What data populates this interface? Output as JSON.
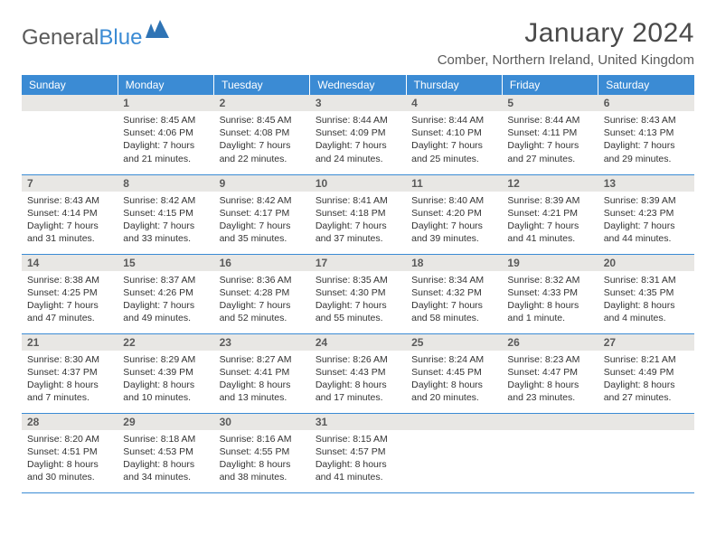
{
  "brand": {
    "part1": "General",
    "part2": "Blue"
  },
  "title": "January 2024",
  "location": "Comber, Northern Ireland, United Kingdom",
  "colors": {
    "header_bg": "#3b8bd4",
    "header_text": "#ffffff",
    "daynum_bg": "#e8e7e4",
    "border": "#3b8bd4",
    "text": "#333333",
    "brand_gray": "#5a5a5a",
    "brand_blue": "#3b8bd4"
  },
  "typography": {
    "title_fontsize": 30,
    "location_fontsize": 15,
    "dayheader_fontsize": 12,
    "body_fontsize": 10.5
  },
  "calendar": {
    "day_headers": [
      "Sunday",
      "Monday",
      "Tuesday",
      "Wednesday",
      "Thursday",
      "Friday",
      "Saturday"
    ],
    "first_weekday_index": 1,
    "days": [
      {
        "n": 1,
        "sunrise": "8:45 AM",
        "sunset": "4:06 PM",
        "daylight": "7 hours and 21 minutes."
      },
      {
        "n": 2,
        "sunrise": "8:45 AM",
        "sunset": "4:08 PM",
        "daylight": "7 hours and 22 minutes."
      },
      {
        "n": 3,
        "sunrise": "8:44 AM",
        "sunset": "4:09 PM",
        "daylight": "7 hours and 24 minutes."
      },
      {
        "n": 4,
        "sunrise": "8:44 AM",
        "sunset": "4:10 PM",
        "daylight": "7 hours and 25 minutes."
      },
      {
        "n": 5,
        "sunrise": "8:44 AM",
        "sunset": "4:11 PM",
        "daylight": "7 hours and 27 minutes."
      },
      {
        "n": 6,
        "sunrise": "8:43 AM",
        "sunset": "4:13 PM",
        "daylight": "7 hours and 29 minutes."
      },
      {
        "n": 7,
        "sunrise": "8:43 AM",
        "sunset": "4:14 PM",
        "daylight": "7 hours and 31 minutes."
      },
      {
        "n": 8,
        "sunrise": "8:42 AM",
        "sunset": "4:15 PM",
        "daylight": "7 hours and 33 minutes."
      },
      {
        "n": 9,
        "sunrise": "8:42 AM",
        "sunset": "4:17 PM",
        "daylight": "7 hours and 35 minutes."
      },
      {
        "n": 10,
        "sunrise": "8:41 AM",
        "sunset": "4:18 PM",
        "daylight": "7 hours and 37 minutes."
      },
      {
        "n": 11,
        "sunrise": "8:40 AM",
        "sunset": "4:20 PM",
        "daylight": "7 hours and 39 minutes."
      },
      {
        "n": 12,
        "sunrise": "8:39 AM",
        "sunset": "4:21 PM",
        "daylight": "7 hours and 41 minutes."
      },
      {
        "n": 13,
        "sunrise": "8:39 AM",
        "sunset": "4:23 PM",
        "daylight": "7 hours and 44 minutes."
      },
      {
        "n": 14,
        "sunrise": "8:38 AM",
        "sunset": "4:25 PM",
        "daylight": "7 hours and 47 minutes."
      },
      {
        "n": 15,
        "sunrise": "8:37 AM",
        "sunset": "4:26 PM",
        "daylight": "7 hours and 49 minutes."
      },
      {
        "n": 16,
        "sunrise": "8:36 AM",
        "sunset": "4:28 PM",
        "daylight": "7 hours and 52 minutes."
      },
      {
        "n": 17,
        "sunrise": "8:35 AM",
        "sunset": "4:30 PM",
        "daylight": "7 hours and 55 minutes."
      },
      {
        "n": 18,
        "sunrise": "8:34 AM",
        "sunset": "4:32 PM",
        "daylight": "7 hours and 58 minutes."
      },
      {
        "n": 19,
        "sunrise": "8:32 AM",
        "sunset": "4:33 PM",
        "daylight": "8 hours and 1 minute."
      },
      {
        "n": 20,
        "sunrise": "8:31 AM",
        "sunset": "4:35 PM",
        "daylight": "8 hours and 4 minutes."
      },
      {
        "n": 21,
        "sunrise": "8:30 AM",
        "sunset": "4:37 PM",
        "daylight": "8 hours and 7 minutes."
      },
      {
        "n": 22,
        "sunrise": "8:29 AM",
        "sunset": "4:39 PM",
        "daylight": "8 hours and 10 minutes."
      },
      {
        "n": 23,
        "sunrise": "8:27 AM",
        "sunset": "4:41 PM",
        "daylight": "8 hours and 13 minutes."
      },
      {
        "n": 24,
        "sunrise": "8:26 AM",
        "sunset": "4:43 PM",
        "daylight": "8 hours and 17 minutes."
      },
      {
        "n": 25,
        "sunrise": "8:24 AM",
        "sunset": "4:45 PM",
        "daylight": "8 hours and 20 minutes."
      },
      {
        "n": 26,
        "sunrise": "8:23 AM",
        "sunset": "4:47 PM",
        "daylight": "8 hours and 23 minutes."
      },
      {
        "n": 27,
        "sunrise": "8:21 AM",
        "sunset": "4:49 PM",
        "daylight": "8 hours and 27 minutes."
      },
      {
        "n": 28,
        "sunrise": "8:20 AM",
        "sunset": "4:51 PM",
        "daylight": "8 hours and 30 minutes."
      },
      {
        "n": 29,
        "sunrise": "8:18 AM",
        "sunset": "4:53 PM",
        "daylight": "8 hours and 34 minutes."
      },
      {
        "n": 30,
        "sunrise": "8:16 AM",
        "sunset": "4:55 PM",
        "daylight": "8 hours and 38 minutes."
      },
      {
        "n": 31,
        "sunrise": "8:15 AM",
        "sunset": "4:57 PM",
        "daylight": "8 hours and 41 minutes."
      }
    ]
  }
}
